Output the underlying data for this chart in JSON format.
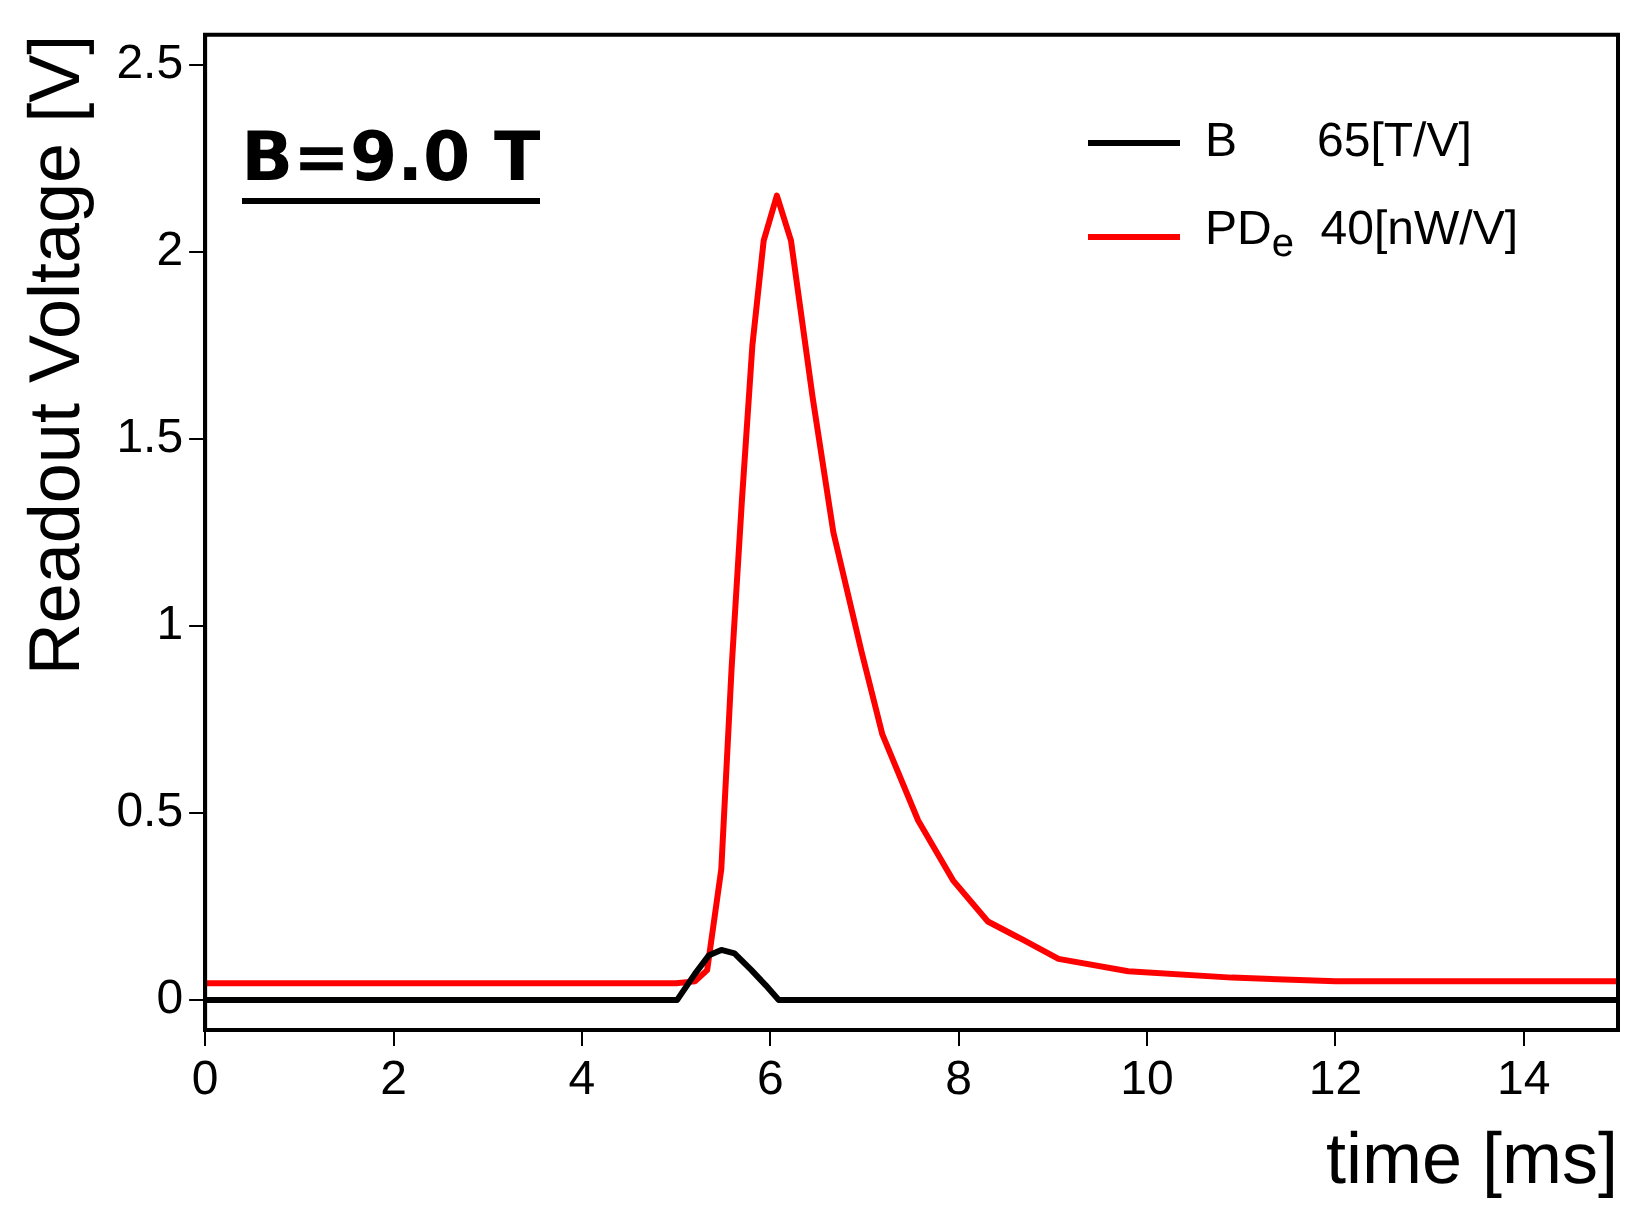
{
  "chart_data": {
    "type": "line",
    "xlabel": "time [ms]",
    "ylabel": "Readout Voltage [V]",
    "xlim": [
      0,
      15
    ],
    "xticks": [
      0,
      2,
      4,
      6,
      8,
      10,
      12,
      14
    ],
    "ylim": [
      -0.08,
      2.58
    ],
    "yticks": [
      0,
      0.5,
      1,
      1.5,
      2,
      2.5
    ],
    "grid": false,
    "legend": "top right",
    "marker": "none",
    "line_style": "solid",
    "annotations": [
      "B=9.0 T"
    ],
    "series": [
      {
        "name": "B      65[T/V]",
        "color": "#000000",
        "x": [
          0,
          5.01,
          5.2,
          5.35,
          5.48,
          5.62,
          5.8,
          5.95,
          6.09,
          15
        ],
        "values": [
          0,
          0,
          0.07,
          0.12,
          0.134,
          0.125,
          0.08,
          0.04,
          0,
          0
        ]
      },
      {
        "name": "PD$_{e}$  40[nW/V]",
        "color": "#ff0000",
        "x": [
          0,
          1,
          2,
          3,
          4,
          5,
          5.2,
          5.33,
          5.48,
          5.59,
          5.7,
          5.81,
          5.93,
          6.07,
          6.22,
          6.45,
          6.67,
          6.97,
          7.19,
          7.57,
          7.94,
          8.31,
          8.69,
          9.06,
          9.8,
          10.9,
          12,
          13,
          14,
          15
        ],
        "values": [
          0.045,
          0.045,
          0.045,
          0.045,
          0.045,
          0.045,
          0.05,
          0.08,
          0.35,
          0.89,
          1.34,
          1.75,
          2.03,
          2.15,
          2.03,
          1.61,
          1.25,
          0.93,
          0.71,
          0.48,
          0.32,
          0.21,
          0.16,
          0.11,
          0.077,
          0.06,
          0.05,
          0.05,
          0.05,
          0.05
        ]
      }
    ]
  }
}
